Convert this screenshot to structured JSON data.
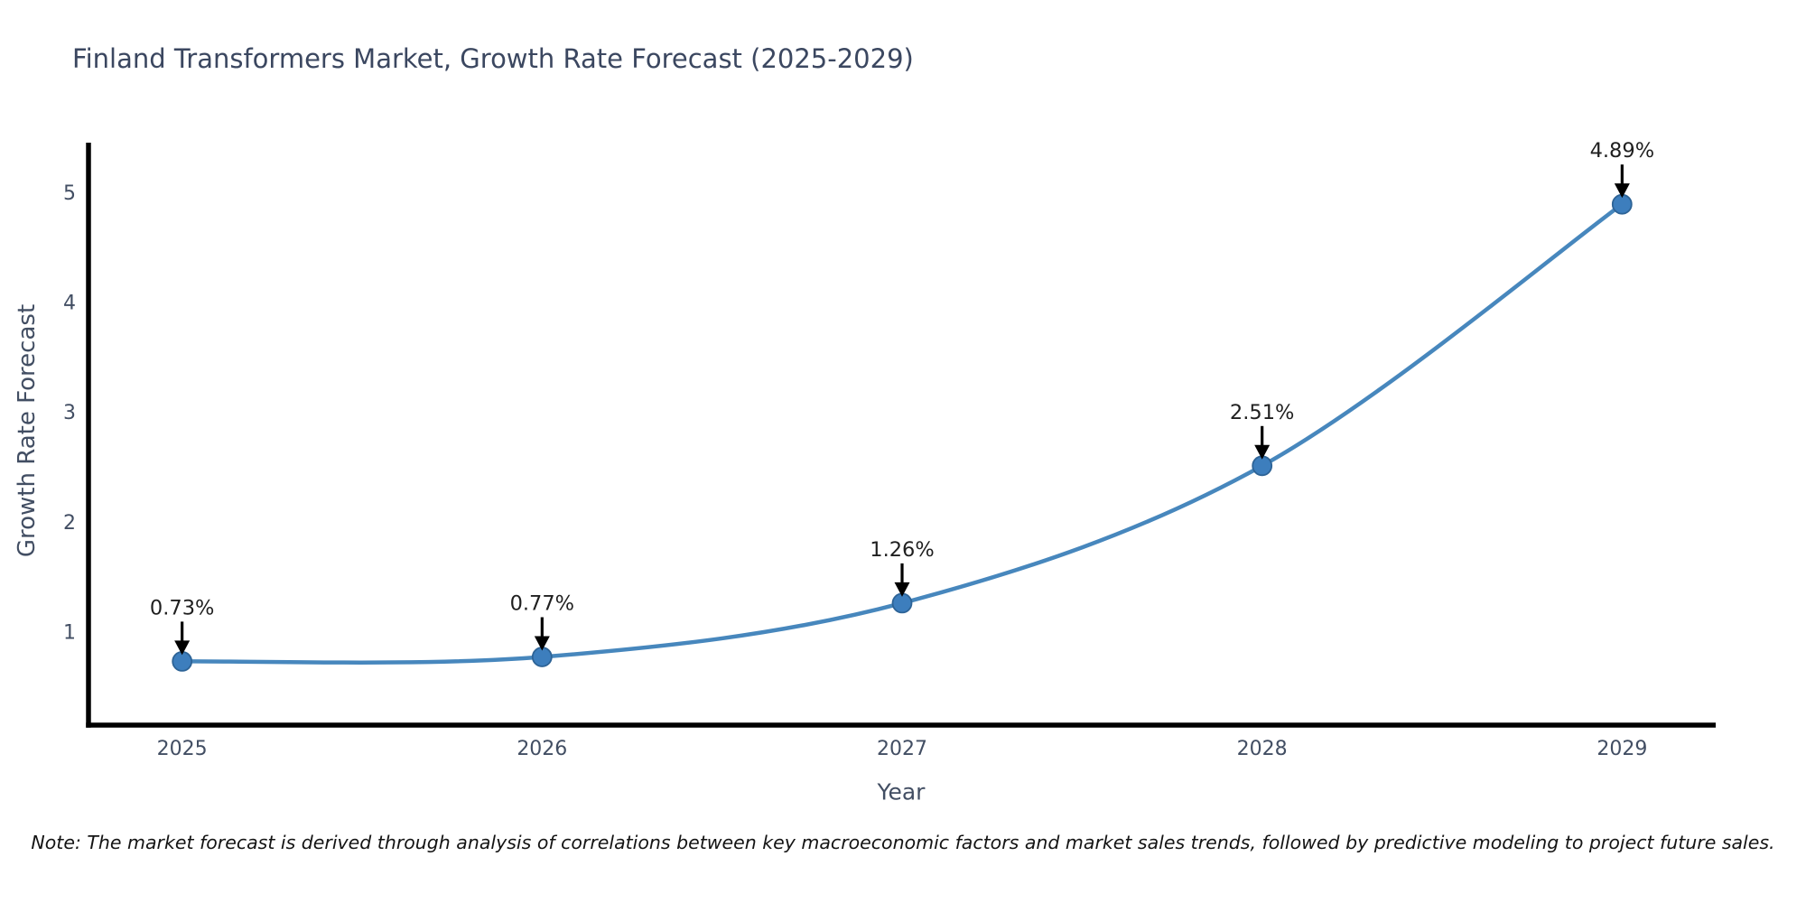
{
  "figure": {
    "note": "Note: The market forecast is derived through analysis of correlations between key macroeconomic factors and market sales trends, followed by predictive modeling to project future sales.",
    "colors": {
      "line": "#4787bd",
      "marker": "#3d7ebd",
      "marker_edge": "#2d6396",
      "axis": "#000000",
      "arrow": "#000000",
      "title_text": "#3b4760",
      "tick_text": "#424e63",
      "annotation_text": "#1f1f1f",
      "note_text": "#141414",
      "background": "#ffffff"
    }
  },
  "chart_data": {
    "type": "line",
    "title": "Finland Transformers Market, Growth Rate Forecast (2025-2029)",
    "xlabel": "Year",
    "ylabel": "Growth Rate Forecast",
    "x": [
      2025,
      2026,
      2027,
      2028,
      2029
    ],
    "series": [
      {
        "name": "Growth Rate Forecast (%)",
        "values": [
          0.73,
          0.77,
          1.26,
          2.51,
          4.89
        ],
        "labels": [
          "0.73%",
          "0.77%",
          "1.26%",
          "2.51%",
          "4.89%"
        ]
      }
    ],
    "x_tick_labels": [
      "2025",
      "2026",
      "2027",
      "2028",
      "2029"
    ],
    "y_ticks": [
      1,
      2,
      3,
      4,
      5
    ],
    "y_tick_labels": [
      "1",
      "2",
      "3",
      "4",
      "5"
    ],
    "xlim": [
      2024.74,
      2029.26
    ],
    "ylim": [
      0.15,
      5.45
    ],
    "grid": false,
    "legend": "none",
    "line_style": "smooth",
    "marker": "circle",
    "annotation_arrows": true
  }
}
